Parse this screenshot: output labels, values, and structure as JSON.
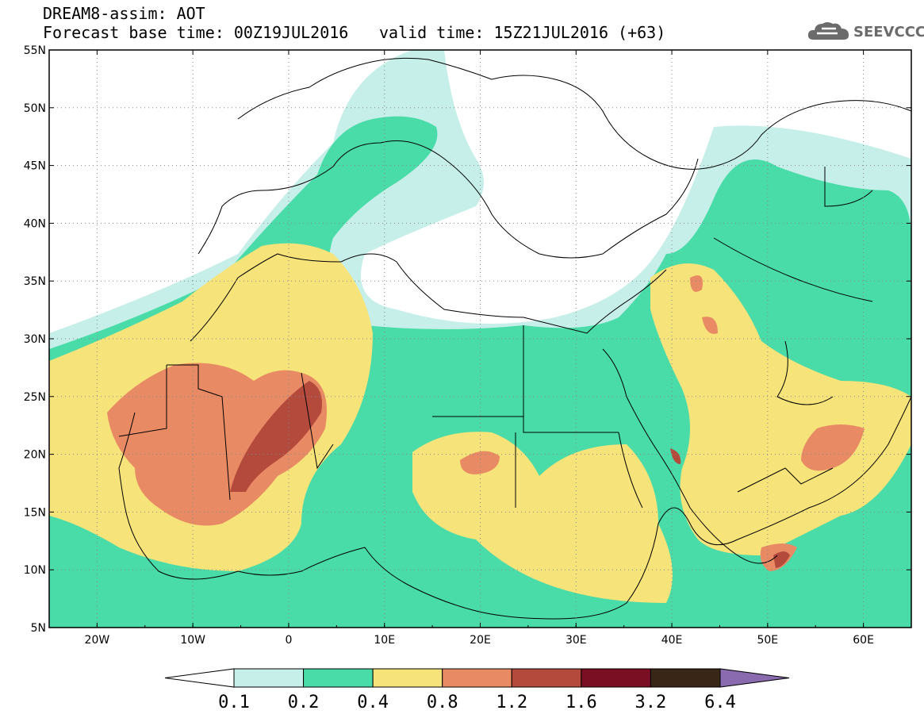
{
  "header": {
    "title": "DREAM8-assim: AOT",
    "base_time": "Forecast base time: 00Z19JUL2016",
    "valid_time": "valid time: 15Z21JUL2016 (+63)"
  },
  "logo": {
    "text": "SEEVCCC",
    "icon": "cloud-icon"
  },
  "map": {
    "lat_labels": [
      "55N",
      "50N",
      "45N",
      "40N",
      "35N",
      "30N",
      "25N",
      "20N",
      "15N",
      "10N",
      "5N"
    ],
    "lon_labels": [
      "20W",
      "10W",
      "0",
      "10E",
      "20E",
      "30E",
      "40E",
      "50E",
      "60E"
    ],
    "lon_range": [
      -25,
      65
    ],
    "lat_range": [
      5,
      55
    ]
  },
  "colorbar": {
    "labels": [
      "0.1",
      "0.2",
      "0.4",
      "0.8",
      "1.2",
      "1.6",
      "3.2",
      "6.4"
    ],
    "colors": [
      "#ffffff",
      "#c6efe9",
      "#49dba8",
      "#f6e37a",
      "#e88a63",
      "#b44a3c",
      "#7a0f24",
      "#3a2616",
      "#8b6bb0"
    ]
  },
  "fields": {
    "c0": "#c6efe9",
    "c1": "#49dba8",
    "c2": "#f6e37a",
    "c3": "#e88a63",
    "c4": "#b44a3c"
  }
}
